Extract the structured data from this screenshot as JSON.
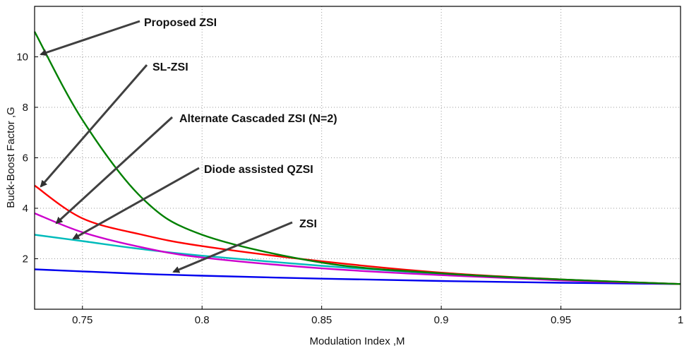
{
  "chart_data": {
    "type": "line",
    "xlabel": "Modulation Index ,M",
    "ylabel": "Buck-Boost Factor ,G",
    "xlim": [
      0.73,
      1.0
    ],
    "ylim": [
      0,
      12
    ],
    "xticks": [
      "0.75",
      "0.8",
      "0.85",
      "0.9",
      "0.95",
      "1"
    ],
    "xtick_values": [
      0.75,
      0.8,
      0.85,
      0.9,
      0.95,
      1.0
    ],
    "yticks": [
      "2",
      "4",
      "6",
      "8",
      "10"
    ],
    "ytick_values": [
      2,
      4,
      6,
      8,
      10
    ],
    "grid": true,
    "legend": "none (series identified by arrow annotations)",
    "series": [
      {
        "name": "Proposed ZSI",
        "color": "#008000",
        "x": [
          0.73,
          0.75,
          0.775,
          0.8,
          0.85,
          0.9,
          0.95,
          1.0
        ],
        "y": [
          11.0,
          7.5,
          4.4,
          2.95,
          1.85,
          1.42,
          1.18,
          1.0
        ]
      },
      {
        "name": "SL-ZSI",
        "color": "#ff0000",
        "x": [
          0.73,
          0.75,
          0.775,
          0.8,
          0.85,
          0.9,
          0.95,
          1.0
        ],
        "y": [
          4.9,
          3.6,
          2.95,
          2.5,
          1.9,
          1.45,
          1.18,
          1.0
        ]
      },
      {
        "name": "Alternate Cascaded ZSI (N=2)",
        "color": "#cc00cc",
        "x": [
          0.73,
          0.75,
          0.775,
          0.8,
          0.85,
          0.9,
          0.95,
          1.0
        ],
        "y": [
          3.8,
          3.05,
          2.45,
          2.05,
          1.62,
          1.35,
          1.14,
          1.0
        ]
      },
      {
        "name": "Diode assisted QZSI",
        "color": "#00bbbb",
        "x": [
          0.73,
          0.75,
          0.775,
          0.8,
          0.85,
          0.9,
          0.95,
          1.0
        ],
        "y": [
          2.95,
          2.7,
          2.38,
          2.12,
          1.72,
          1.4,
          1.17,
          1.0
        ]
      },
      {
        "name": "ZSI",
        "color": "#0000ee",
        "x": [
          0.73,
          0.75,
          0.775,
          0.8,
          0.85,
          0.9,
          0.95,
          1.0
        ],
        "y": [
          1.58,
          1.5,
          1.4,
          1.33,
          1.21,
          1.12,
          1.05,
          1.0
        ]
      }
    ],
    "annotations": [
      {
        "text": "Proposed ZSI",
        "series": "Proposed ZSI"
      },
      {
        "text": "SL-ZSI",
        "series": "SL-ZSI"
      },
      {
        "text": "Alternate Cascaded ZSI (N=2)",
        "series": "Alternate Cascaded ZSI (N=2)"
      },
      {
        "text": "Diode assisted QZSI",
        "series": "Diode assisted QZSI"
      },
      {
        "text": "ZSI",
        "series": "ZSI"
      }
    ]
  }
}
